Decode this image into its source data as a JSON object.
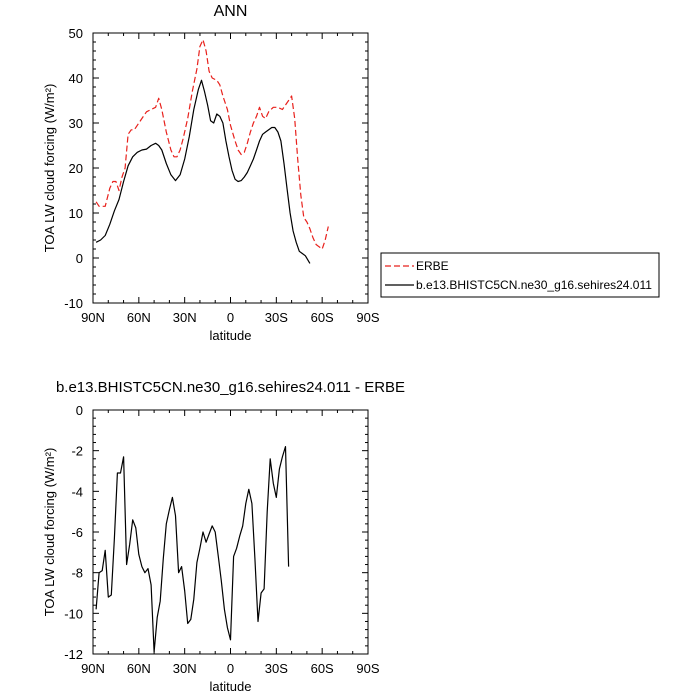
{
  "chart_data": [
    {
      "type": "line",
      "title": "ANN",
      "xlabel": "latitude",
      "ylabel": "TOA LW cloud forcing (W/m²)",
      "xlim": [
        90,
        -90
      ],
      "ylim": [
        -10,
        50
      ],
      "x_ticks": [
        90,
        60,
        30,
        0,
        -30,
        -60,
        -90
      ],
      "x_tick_labels": [
        "90N",
        "60N",
        "30N",
        "0",
        "30S",
        "60S",
        "90S"
      ],
      "y_ticks": [
        -10,
        0,
        10,
        20,
        30,
        40,
        50
      ],
      "y_tick_labels": [
        "-10",
        "0",
        "10",
        "20",
        "30",
        "40",
        "50"
      ],
      "legend_position": "right",
      "series": [
        {
          "name": "ERBE",
          "color": "#e8211c",
          "dash": true,
          "points": [
            [
              88,
              12.5
            ],
            [
              86,
              11.5
            ],
            [
              82,
              11.5
            ],
            [
              79,
              15.5
            ],
            [
              77,
              17
            ],
            [
              75,
              17
            ],
            [
              73,
              15
            ],
            [
              71,
              18
            ],
            [
              69,
              20
            ],
            [
              67,
              27.5
            ],
            [
              65,
              28.5
            ],
            [
              63,
              28.5
            ],
            [
              61,
              29.5
            ],
            [
              58,
              31
            ],
            [
              55,
              32.5
            ],
            [
              52,
              33
            ],
            [
              49,
              33.5
            ],
            [
              47,
              35.5
            ],
            [
              45,
              33
            ],
            [
              42,
              28
            ],
            [
              39,
              24
            ],
            [
              37,
              22.5
            ],
            [
              35,
              22.5
            ],
            [
              33,
              24
            ],
            [
              31,
              26.5
            ],
            [
              28,
              31
            ],
            [
              25,
              37
            ],
            [
              22,
              42
            ],
            [
              20,
              47
            ],
            [
              18,
              48.5
            ],
            [
              16,
              46
            ],
            [
              14,
              41.5
            ],
            [
              12,
              40
            ],
            [
              9,
              39.5
            ],
            [
              7,
              38.5
            ],
            [
              5,
              36
            ],
            [
              2,
              33
            ],
            [
              0,
              29.5
            ],
            [
              -3,
              26
            ],
            [
              -5,
              24
            ],
            [
              -7,
              23
            ],
            [
              -9,
              23.5
            ],
            [
              -11,
              25.5
            ],
            [
              -13,
              28
            ],
            [
              -15,
              30
            ],
            [
              -17,
              31.5
            ],
            [
              -19,
              33.5
            ],
            [
              -21,
              31.5
            ],
            [
              -23,
              31
            ],
            [
              -25,
              32.5
            ],
            [
              -28,
              33.5
            ],
            [
              -31,
              33.5
            ],
            [
              -34,
              33
            ],
            [
              -36,
              34
            ],
            [
              -38,
              35
            ],
            [
              -40,
              36
            ],
            [
              -42,
              31
            ],
            [
              -44,
              22
            ],
            [
              -46,
              14
            ],
            [
              -48,
              9
            ],
            [
              -50,
              8
            ],
            [
              -52,
              6.5
            ],
            [
              -54,
              4.5
            ],
            [
              -56,
              3
            ],
            [
              -58,
              2.5
            ],
            [
              -60,
              2
            ],
            [
              -62,
              4
            ],
            [
              -64,
              7
            ]
          ]
        },
        {
          "name": "b.e13.BHISTC5CN.ne30_g16.sehires24.011",
          "color": "#000000",
          "dash": false,
          "points": [
            [
              88,
              3.5
            ],
            [
              85,
              4
            ],
            [
              82,
              5
            ],
            [
              79,
              7.5
            ],
            [
              76,
              10.5
            ],
            [
              73,
              13
            ],
            [
              70,
              17
            ],
            [
              67,
              20.5
            ],
            [
              64,
              22.5
            ],
            [
              61,
              23.5
            ],
            [
              58,
              24
            ],
            [
              55,
              24.2
            ],
            [
              52,
              25
            ],
            [
              49,
              25.5
            ],
            [
              47,
              25
            ],
            [
              45,
              24
            ],
            [
              42,
              21
            ],
            [
              39,
              18.5
            ],
            [
              36,
              17.2
            ],
            [
              33,
              18.5
            ],
            [
              30,
              22
            ],
            [
              27,
              27
            ],
            [
              24,
              33
            ],
            [
              21,
              37.5
            ],
            [
              19,
              39.5
            ],
            [
              17,
              37
            ],
            [
              15,
              34
            ],
            [
              13,
              30.5
            ],
            [
              11,
              30
            ],
            [
              9,
              32
            ],
            [
              7,
              31.5
            ],
            [
              5,
              30
            ],
            [
              3,
              26
            ],
            [
              1,
              22.5
            ],
            [
              -1,
              19.5
            ],
            [
              -3,
              17.5
            ],
            [
              -5,
              17
            ],
            [
              -7,
              17.2
            ],
            [
              -9,
              18
            ],
            [
              -11,
              19
            ],
            [
              -13,
              20.5
            ],
            [
              -15,
              22
            ],
            [
              -17,
              24
            ],
            [
              -19,
              26
            ],
            [
              -21,
              27.5
            ],
            [
              -23,
              28
            ],
            [
              -25,
              28.5
            ],
            [
              -27,
              29
            ],
            [
              -29,
              29
            ],
            [
              -31,
              28
            ],
            [
              -33,
              26
            ],
            [
              -35,
              21
            ],
            [
              -37,
              15.5
            ],
            [
              -39,
              10
            ],
            [
              -41,
              6
            ],
            [
              -43,
              3.5
            ],
            [
              -45,
              1.5
            ],
            [
              -47,
              1
            ],
            [
              -49,
              0.5
            ],
            [
              -52,
              -1.2
            ]
          ]
        }
      ]
    },
    {
      "type": "line",
      "title": "b.e13.BHISTC5CN.ne30_g16.sehires24.011 - ERBE",
      "xlabel": "latitude",
      "ylabel": "TOA LW cloud forcing (W/m²)",
      "xlim": [
        90,
        -90
      ],
      "ylim": [
        -12,
        0
      ],
      "x_ticks": [
        90,
        60,
        30,
        0,
        -30,
        -60,
        -90
      ],
      "x_tick_labels": [
        "90N",
        "60N",
        "30N",
        "0",
        "30S",
        "60S",
        "90S"
      ],
      "y_ticks": [
        -12,
        -10,
        -8,
        -6,
        -4,
        -2,
        0
      ],
      "y_tick_labels": [
        "-12",
        "-10",
        "-8",
        "-6",
        "-4",
        "-2",
        "0"
      ],
      "series": [
        {
          "color": "#000000",
          "dash": false,
          "points": [
            [
              88,
              -9.8
            ],
            [
              86,
              -8
            ],
            [
              84,
              -7.9
            ],
            [
              82,
              -6.9
            ],
            [
              80,
              -9.2
            ],
            [
              78,
              -9.1
            ],
            [
              76,
              -6.3
            ],
            [
              74,
              -3.1
            ],
            [
              72,
              -3.1
            ],
            [
              70,
              -2.3
            ],
            [
              68,
              -7.6
            ],
            [
              66,
              -6.6
            ],
            [
              64,
              -5.4
            ],
            [
              62,
              -5.8
            ],
            [
              60,
              -7.1
            ],
            [
              58,
              -7.7
            ],
            [
              56,
              -8
            ],
            [
              54,
              -7.8
            ],
            [
              52,
              -8.6
            ],
            [
              50,
              -11.9
            ],
            [
              48,
              -10.2
            ],
            [
              46,
              -9.4
            ],
            [
              44,
              -7.3
            ],
            [
              42,
              -5.6
            ],
            [
              40,
              -4.9
            ],
            [
              38,
              -4.3
            ],
            [
              36,
              -5.2
            ],
            [
              34,
              -8
            ],
            [
              32,
              -7.7
            ],
            [
              30,
              -8.9
            ],
            [
              28,
              -10.5
            ],
            [
              26,
              -10.3
            ],
            [
              24,
              -9.3
            ],
            [
              22,
              -7.5
            ],
            [
              20,
              -6.8
            ],
            [
              18,
              -6
            ],
            [
              16,
              -6.5
            ],
            [
              14,
              -6.1
            ],
            [
              12,
              -5.7
            ],
            [
              10,
              -6
            ],
            [
              8,
              -7.2
            ],
            [
              6,
              -8.4
            ],
            [
              4,
              -9.8
            ],
            [
              2,
              -10.7
            ],
            [
              0,
              -11.3
            ],
            [
              -2,
              -7.2
            ],
            [
              -4,
              -6.8
            ],
            [
              -6,
              -6.2
            ],
            [
              -8,
              -5.7
            ],
            [
              -10,
              -4.6
            ],
            [
              -12,
              -3.9
            ],
            [
              -14,
              -4.6
            ],
            [
              -16,
              -7.3
            ],
            [
              -18,
              -10.4
            ],
            [
              -20,
              -9
            ],
            [
              -22,
              -8.8
            ],
            [
              -24,
              -5
            ],
            [
              -26,
              -2.4
            ],
            [
              -28,
              -3.6
            ],
            [
              -30,
              -4.3
            ],
            [
              -32,
              -2.9
            ],
            [
              -34,
              -2.3
            ],
            [
              -36,
              -1.8
            ],
            [
              -38,
              -7.7
            ]
          ]
        }
      ]
    }
  ]
}
